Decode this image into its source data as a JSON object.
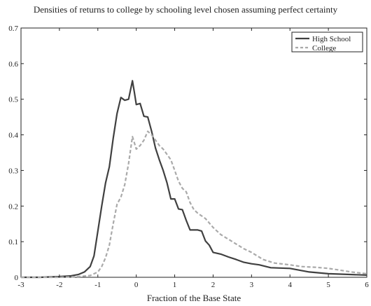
{
  "chart_data": {
    "type": "line",
    "title": "Densities of returns to college by schooling level chosen assuming perfect certainty",
    "xlabel": "Fraction of the Base State",
    "ylabel": "",
    "xlim": [
      -3,
      6
    ],
    "ylim": [
      0,
      0.7
    ],
    "xticks": [
      "-3",
      "-2",
      "-1",
      "0",
      "1",
      "2",
      "3",
      "4",
      "5",
      "6"
    ],
    "yticks": [
      "0",
      "0.1",
      "0.2",
      "0.3",
      "0.4",
      "0.5",
      "0.6",
      "0.7"
    ],
    "grid": false,
    "legend_position": "top-right",
    "series": [
      {
        "name": "High School",
        "color": "#404040",
        "style": "solid",
        "x": [
          -3.0,
          -2.5,
          -2.0,
          -1.7,
          -1.5,
          -1.35,
          -1.2,
          -1.1,
          -1.0,
          -0.9,
          -0.8,
          -0.7,
          -0.6,
          -0.5,
          -0.4,
          -0.3,
          -0.2,
          -0.1,
          -0.05,
          0.0,
          0.1,
          0.2,
          0.3,
          0.4,
          0.5,
          0.6,
          0.7,
          0.8,
          0.9,
          1.0,
          1.1,
          1.2,
          1.3,
          1.4,
          1.5,
          1.6,
          1.7,
          1.8,
          1.9,
          2.0,
          2.2,
          2.4,
          2.6,
          2.8,
          3.0,
          3.2,
          3.5,
          4.0,
          4.5,
          5.0,
          5.5,
          6.0
        ],
        "values": [
          0.0,
          0.0,
          0.002,
          0.004,
          0.008,
          0.015,
          0.03,
          0.06,
          0.13,
          0.2,
          0.265,
          0.31,
          0.39,
          0.46,
          0.505,
          0.497,
          0.5,
          0.552,
          0.52,
          0.485,
          0.488,
          0.452,
          0.45,
          0.41,
          0.363,
          0.33,
          0.3,
          0.265,
          0.22,
          0.22,
          0.192,
          0.19,
          0.16,
          0.133,
          0.133,
          0.133,
          0.13,
          0.102,
          0.09,
          0.07,
          0.065,
          0.057,
          0.05,
          0.042,
          0.038,
          0.035,
          0.027,
          0.025,
          0.015,
          0.01,
          0.008,
          0.006
        ]
      },
      {
        "name": "College",
        "color": "#aaaaaa",
        "style": "dashed",
        "x": [
          -3.0,
          -2.0,
          -1.5,
          -1.2,
          -1.0,
          -0.9,
          -0.8,
          -0.7,
          -0.6,
          -0.5,
          -0.4,
          -0.3,
          -0.2,
          -0.1,
          0.0,
          0.1,
          0.2,
          0.3,
          0.4,
          0.5,
          0.6,
          0.7,
          0.8,
          0.9,
          1.0,
          1.1,
          1.2,
          1.3,
          1.4,
          1.5,
          1.6,
          1.8,
          2.0,
          2.2,
          2.5,
          2.8,
          3.0,
          3.3,
          3.6,
          4.0,
          4.3,
          4.7,
          5.0,
          5.3,
          5.6,
          6.0
        ],
        "values": [
          0.0,
          0.0,
          0.002,
          0.005,
          0.015,
          0.03,
          0.055,
          0.09,
          0.15,
          0.205,
          0.225,
          0.26,
          0.32,
          0.395,
          0.36,
          0.37,
          0.385,
          0.41,
          0.4,
          0.385,
          0.37,
          0.36,
          0.345,
          0.33,
          0.3,
          0.27,
          0.25,
          0.24,
          0.21,
          0.19,
          0.18,
          0.165,
          0.14,
          0.12,
          0.1,
          0.08,
          0.07,
          0.05,
          0.04,
          0.035,
          0.03,
          0.028,
          0.025,
          0.02,
          0.015,
          0.01
        ]
      }
    ]
  }
}
